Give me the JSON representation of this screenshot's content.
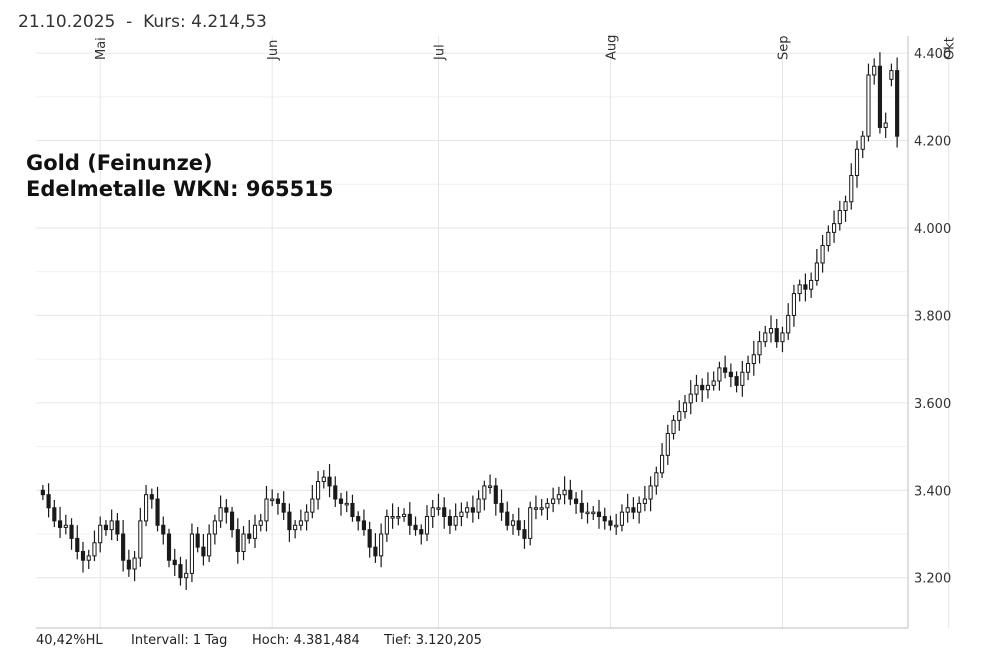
{
  "header": {
    "date": "21.10.2025",
    "separator": "-",
    "price_label": "Kurs: 4.214,53"
  },
  "title": {
    "line1": "Gold (Feinunze)",
    "line2": "Edelmetalle WKN: 965515"
  },
  "footer": {
    "hl_percent": "40,42%HL",
    "interval": "Intervall: 1 Tag",
    "high": "Hoch: 4.381,484",
    "low": "Tief: 3.120,205"
  },
  "colors": {
    "candle": "#1a1a1a",
    "up_fill": "#ffffff",
    "down_fill": "#1a1a1a",
    "grid": "#e6e6e6",
    "axis": "#bfbfbf"
  },
  "chart_data": {
    "type": "candlestick",
    "y_ticks": [
      "3.200",
      "3.400",
      "3.600",
      "3.800",
      "4.000",
      "4.200",
      "4.400"
    ],
    "y_tick_values": [
      3200,
      3400,
      3600,
      3800,
      4000,
      4200,
      4400
    ],
    "ylim": [
      3085,
      4430
    ],
    "x_labels": [
      {
        "label": "Mai",
        "index": 10
      },
      {
        "label": "Jun",
        "index": 40
      },
      {
        "label": "Jul",
        "index": 69
      },
      {
        "label": "Aug",
        "index": 99
      },
      {
        "label": "Sep",
        "index": 129
      },
      {
        "label": "Okt",
        "index": 158
      }
    ],
    "grid": true,
    "close": [
      3390,
      3360,
      3330,
      3315,
      3320,
      3290,
      3260,
      3240,
      3250,
      3280,
      3320,
      3310,
      3330,
      3300,
      3240,
      3220,
      3245,
      3330,
      3390,
      3380,
      3320,
      3300,
      3240,
      3230,
      3200,
      3210,
      3300,
      3270,
      3250,
      3300,
      3330,
      3360,
      3350,
      3310,
      3260,
      3300,
      3290,
      3320,
      3330,
      3380,
      3380,
      3370,
      3350,
      3310,
      3320,
      3330,
      3350,
      3380,
      3420,
      3430,
      3410,
      3380,
      3370,
      3370,
      3340,
      3330,
      3310,
      3270,
      3250,
      3300,
      3340,
      3340,
      3340,
      3345,
      3320,
      3310,
      3300,
      3340,
      3360,
      3360,
      3340,
      3320,
      3340,
      3350,
      3360,
      3350,
      3380,
      3410,
      3410,
      3370,
      3350,
      3320,
      3330,
      3310,
      3290,
      3360,
      3360,
      3360,
      3370,
      3380,
      3390,
      3400,
      3380,
      3370,
      3350,
      3350,
      3350,
      3340,
      3330,
      3320,
      3320,
      3350,
      3360,
      3350,
      3370,
      3380,
      3410,
      3440,
      3480,
      3530,
      3560,
      3580,
      3600,
      3620,
      3640,
      3630,
      3640,
      3650,
      3680,
      3670,
      3660,
      3640,
      3670,
      3690,
      3710,
      3740,
      3760,
      3770,
      3740,
      3760,
      3800,
      3850,
      3870,
      3860,
      3880,
      3920,
      3960,
      3990,
      4010,
      4040,
      4060,
      4120,
      4180,
      4210,
      4350,
      4370,
      4230,
      4240,
      4360,
      4210
    ],
    "open": [
      3400,
      3390,
      3360,
      3330,
      3315,
      3320,
      3290,
      3260,
      3240,
      3250,
      3280,
      3320,
      3310,
      3330,
      3300,
      3240,
      3220,
      3245,
      3330,
      3390,
      3380,
      3320,
      3300,
      3240,
      3230,
      3200,
      3210,
      3300,
      3270,
      3250,
      3300,
      3330,
      3360,
      3350,
      3310,
      3260,
      3300,
      3290,
      3320,
      3330,
      3380,
      3380,
      3370,
      3350,
      3310,
      3320,
      3330,
      3350,
      3380,
      3420,
      3430,
      3410,
      3380,
      3370,
      3370,
      3340,
      3330,
      3310,
      3270,
      3250,
      3300,
      3340,
      3340,
      3340,
      3345,
      3320,
      3310,
      3300,
      3340,
      3360,
      3360,
      3340,
      3320,
      3340,
      3350,
      3360,
      3350,
      3380,
      3410,
      3410,
      3370,
      3350,
      3320,
      3330,
      3310,
      3290,
      3360,
      3360,
      3360,
      3370,
      3380,
      3390,
      3400,
      3380,
      3370,
      3350,
      3350,
      3350,
      3340,
      3330,
      3320,
      3320,
      3350,
      3360,
      3350,
      3370,
      3380,
      3410,
      3440,
      3480,
      3530,
      3560,
      3580,
      3600,
      3620,
      3640,
      3630,
      3640,
      3650,
      3680,
      3670,
      3660,
      3640,
      3670,
      3690,
      3710,
      3740,
      3760,
      3770,
      3740,
      3760,
      3800,
      3850,
      3870,
      3860,
      3880,
      3920,
      3960,
      3990,
      4010,
      4040,
      4060,
      4120,
      4180,
      4210,
      4350,
      4370,
      4230,
      4340,
      4360
    ],
    "high_low_extremes": {
      "high": 4381.484,
      "low": 3120.205
    }
  }
}
